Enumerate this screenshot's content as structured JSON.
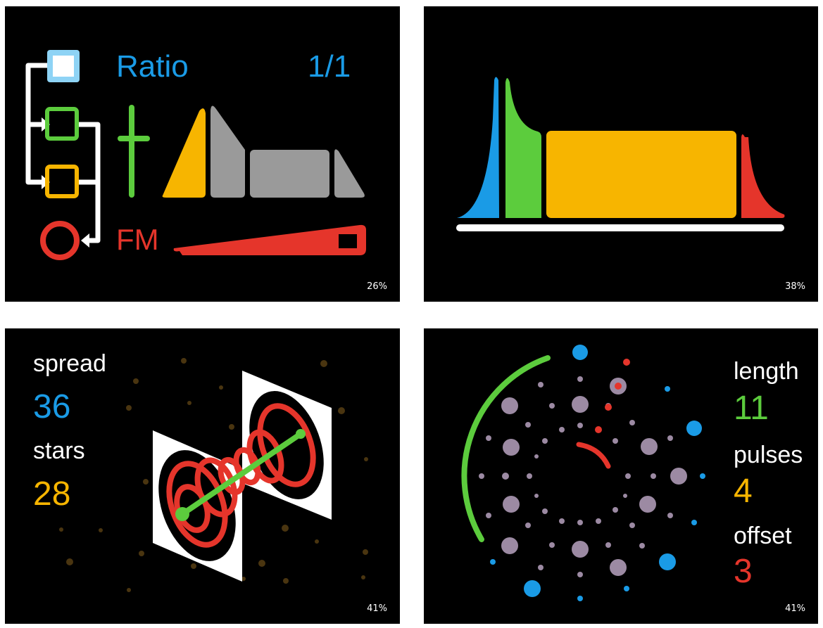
{
  "screens": [
    {
      "id": "fm-ratio",
      "title_label": "Ratio",
      "ratio_value": "1/1",
      "mod_label": "FM",
      "battery": "26%",
      "colors": {
        "blue": "#1a9be6",
        "green": "#5ccc3d",
        "yellow": "#f7b500",
        "red": "#e5352b",
        "gray": "#9a9a9a",
        "light_blue": "#8ed3f5"
      }
    },
    {
      "id": "envelope",
      "battery": "38%",
      "colors": {
        "blue": "#1a9be6",
        "green": "#5ccc3d",
        "yellow": "#f7b500",
        "red": "#e5352b"
      }
    },
    {
      "id": "wormhole",
      "param1_label": "spread",
      "param1_value": "36",
      "param2_label": "stars",
      "param2_value": "28",
      "battery": "41%",
      "colors": {
        "blue": "#1a9be6",
        "yellow": "#f7b500",
        "red": "#e5352b",
        "green": "#5ccc3d",
        "star": "#4a3510"
      }
    },
    {
      "id": "euclidean",
      "param1_label": "length",
      "param1_value": "11",
      "param2_label": "pulses",
      "param2_value": "4",
      "param3_label": "offset",
      "param3_value": "3",
      "battery": "41%",
      "colors": {
        "green": "#5ccc3d",
        "yellow": "#f7b500",
        "red": "#e5352b",
        "blue": "#1a9be6",
        "dot": "#9c8aa3"
      }
    }
  ]
}
